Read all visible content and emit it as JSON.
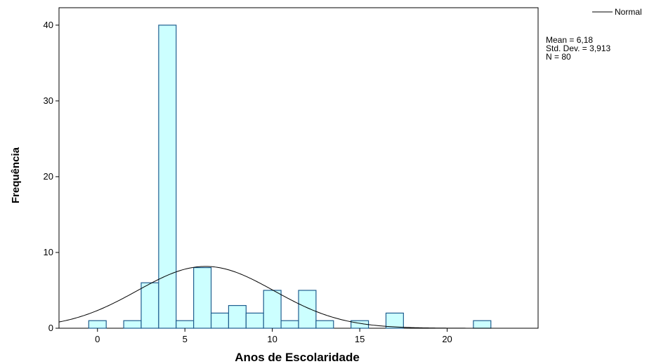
{
  "chart_data": {
    "type": "bar",
    "subtype": "histogram",
    "xlabel": "Anos de Escolaridade",
    "ylabel": "Frequência",
    "xlim": [
      -2.2,
      25.2
    ],
    "ylim": [
      0,
      42.3
    ],
    "x_ticks": [
      0,
      5,
      10,
      15,
      20
    ],
    "x_tick_labels": [
      "0",
      "5",
      "10",
      "15",
      "20"
    ],
    "y_ticks": [
      0,
      10,
      20,
      30,
      40
    ],
    "y_tick_labels": [
      "0",
      "10",
      "20",
      "30",
      "40"
    ],
    "bin_width": 1,
    "bins": [
      {
        "x": 0,
        "count": 1
      },
      {
        "x": 2,
        "count": 1
      },
      {
        "x": 3,
        "count": 6
      },
      {
        "x": 4,
        "count": 40
      },
      {
        "x": 5,
        "count": 1
      },
      {
        "x": 6,
        "count": 8
      },
      {
        "x": 7,
        "count": 2
      },
      {
        "x": 8,
        "count": 3
      },
      {
        "x": 9,
        "count": 2
      },
      {
        "x": 10,
        "count": 5
      },
      {
        "x": 11,
        "count": 1
      },
      {
        "x": 12,
        "count": 5
      },
      {
        "x": 13,
        "count": 1
      },
      {
        "x": 15,
        "count": 1
      },
      {
        "x": 17,
        "count": 2
      },
      {
        "x": 22,
        "count": 1
      }
    ],
    "normal_curve": {
      "mean": 6.18,
      "sd": 3.913,
      "n": 80,
      "label": "Normal"
    },
    "stats_text": [
      "Mean = 6,18",
      "Std. Dev. = 3,913",
      "N = 80"
    ],
    "legend": {
      "entries": [
        "Normal"
      ],
      "position": "top-right"
    },
    "colors": {
      "bar_fill": "#ccffff",
      "bar_stroke": "#1f5e8f",
      "curve": "#000000",
      "frame": "#000000"
    },
    "grid": false
  }
}
